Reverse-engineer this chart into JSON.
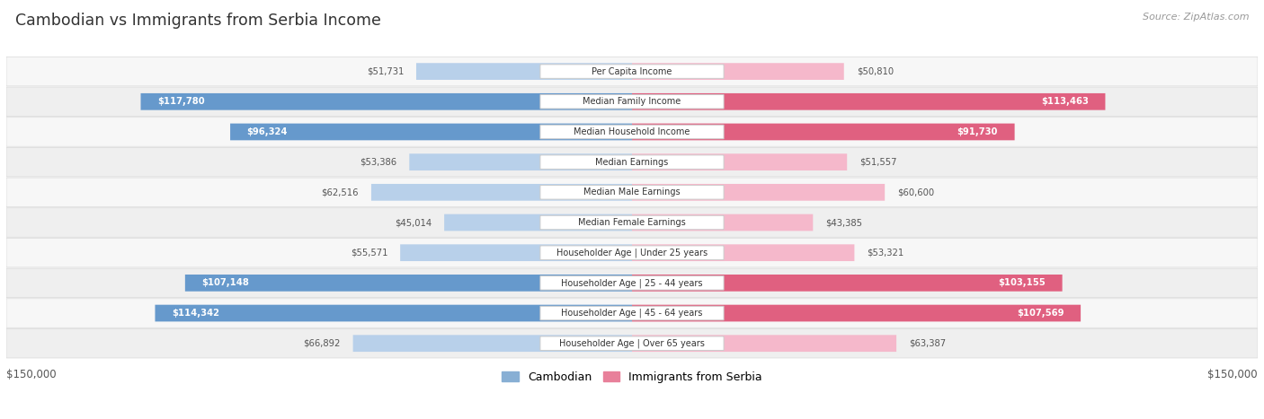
{
  "title": "Cambodian vs Immigrants from Serbia Income",
  "source": "Source: ZipAtlas.com",
  "categories": [
    "Per Capita Income",
    "Median Family Income",
    "Median Household Income",
    "Median Earnings",
    "Median Male Earnings",
    "Median Female Earnings",
    "Householder Age | Under 25 years",
    "Householder Age | 25 - 44 years",
    "Householder Age | 45 - 64 years",
    "Householder Age | Over 65 years"
  ],
  "cambodian_values": [
    51731,
    117780,
    96324,
    53386,
    62516,
    45014,
    55571,
    107148,
    114342,
    66892
  ],
  "serbia_values": [
    50810,
    113463,
    91730,
    51557,
    60600,
    43385,
    53321,
    103155,
    107569,
    63387
  ],
  "max_value": 150000,
  "cambodian_color_light": "#b8d0ea",
  "cambodian_color_dark": "#6699cc",
  "serbia_color_light": "#f5b8cb",
  "serbia_color_dark": "#e06080",
  "row_bg_even": "#f7f7f7",
  "row_bg_odd": "#efefef",
  "title_color": "#333333",
  "source_color": "#999999",
  "legend_cambodian_color": "#88afd4",
  "legend_serbia_color": "#e8809a",
  "threshold": 75000
}
